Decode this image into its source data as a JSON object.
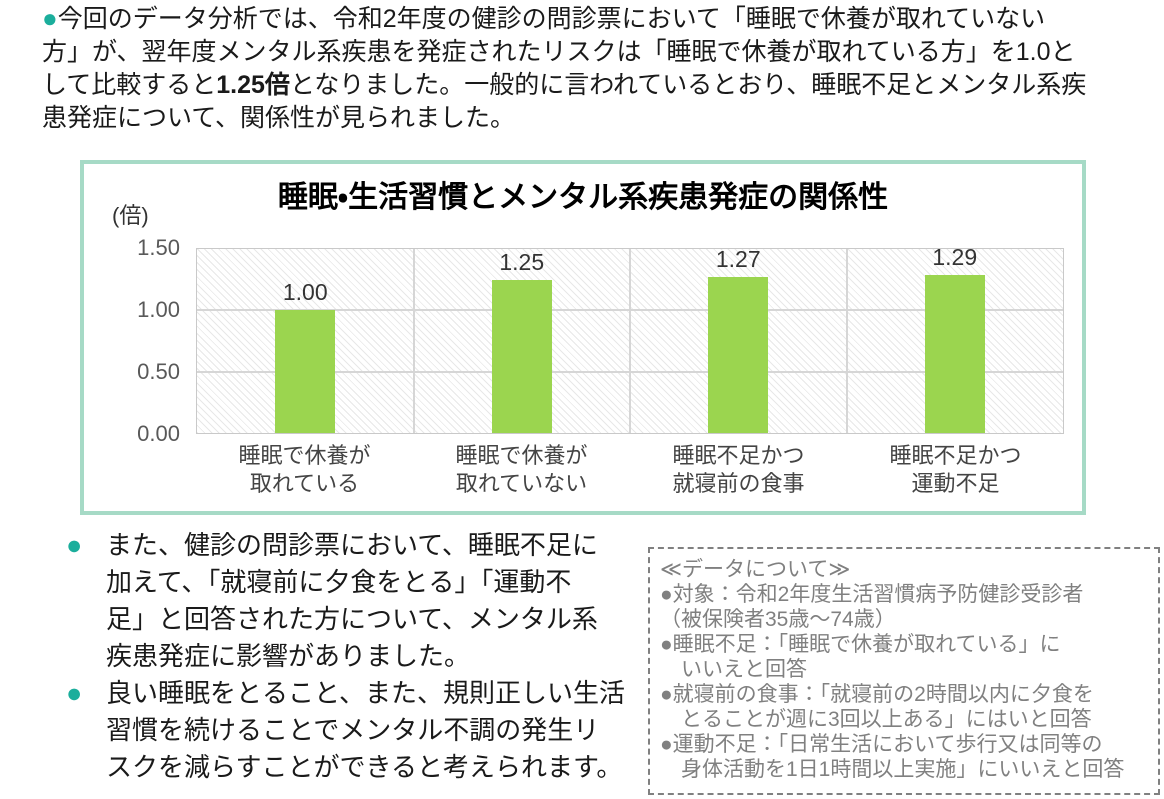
{
  "colors": {
    "teal-border": "#A6DAC6",
    "bullet-teal": "#1BAE9C",
    "bar-green": "#9BD54F",
    "grid-line": "#D6D6D6",
    "plot-border": "#C9C9C9",
    "tick-text": "#595959",
    "text-dark": "#1A1A1A",
    "box-gray": "#808080"
  },
  "bullets": {
    "glyph": "●"
  },
  "intro": {
    "before": "今回のデータ分析では、令和2年度の健診の問診票において「睡眠で休養が取れていない\n方」が、翌年度メンタル系疾患を発症されたリスクは「睡眠で休養が取れている方」を1.0と\nして比較すると",
    "bold": "1.25倍",
    "after": "となりました。一般的に言われているとおり、睡眠不足とメンタル系疾\n患発症について、関係性が見られました。"
  },
  "chart_data": {
    "type": "bar",
    "title": "睡眠・生活習慣とメンタル系疾患発症の関係性",
    "unit_label": "(倍)",
    "categories": [
      "睡眠で休養が\n取れている",
      "睡眠で休養が\n取れていない",
      "睡眠不足かつ\n就寝前の食事",
      "睡眠不足かつ\n運動不足"
    ],
    "values": [
      1.0,
      1.25,
      1.27,
      1.29
    ],
    "value_labels": [
      "1.00",
      "1.25",
      "1.27",
      "1.29"
    ],
    "yticks": [
      "1.50",
      "1.00",
      "0.50",
      "0.00"
    ],
    "ylim": [
      0,
      1.5
    ],
    "xlabel": "",
    "ylabel": "(倍)",
    "grid": true,
    "legend_position": "none"
  },
  "notes": [
    {
      "lines": "また、健診の問診票において、睡眠不足に\n加えて、「就寝前に夕食をとる」「運動不\n足」と回答された方について、メンタル系\n疾患発症に影響がありました。"
    },
    {
      "lines": "良い睡眠をとること、また、規則正しい生活\n習慣を続けることでメンタル不調の発生リ\nスクを減らすことができると考えられます。"
    }
  ],
  "data_box": {
    "title": "≪データについて≫",
    "lines": "●対象：令和2年度生活習慣病予防健診受診者\n（被保険者35歳～74歳）\n●睡眠不足：「睡眠で休養が取れている」に\n　いいえと回答\n●就寝前の食事：「就寝前の2時間以内に夕食を\n　とることが週に3回以上ある」にはいと回答\n●運動不足：「日常生活において歩行又は同等の\n　身体活動を1日1時間以上実施」にいいえと回答"
  }
}
